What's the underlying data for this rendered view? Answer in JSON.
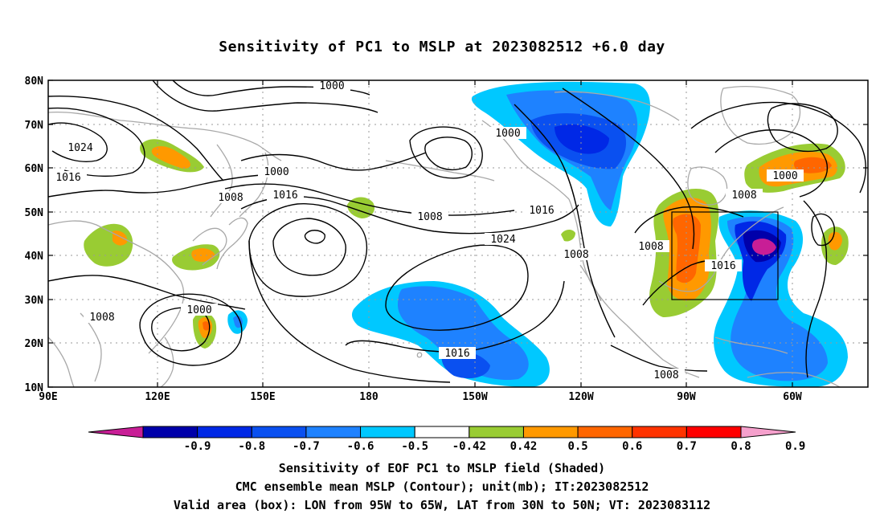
{
  "title": "Sensitivity of PC1 to MSLP at 2023082512 +6.0 day",
  "map": {
    "lat_ticks": [
      "80N",
      "70N",
      "60N",
      "50N",
      "40N",
      "30N",
      "20N",
      "10N"
    ],
    "lon_ticks": [
      "90E",
      "120E",
      "150E",
      "180",
      "150W",
      "120W",
      "90W",
      "60W"
    ],
    "contour_labels": [
      {
        "text": "1000"
      },
      {
        "text": "1000"
      },
      {
        "text": "1024"
      },
      {
        "text": "1016"
      },
      {
        "text": "1000"
      },
      {
        "text": "1008"
      },
      {
        "text": "1016"
      },
      {
        "text": "1008"
      },
      {
        "text": "1016"
      },
      {
        "text": "1024"
      },
      {
        "text": "1008"
      },
      {
        "text": "1008"
      },
      {
        "text": "1016"
      },
      {
        "text": "1000"
      },
      {
        "text": "1008"
      },
      {
        "text": "1000"
      },
      {
        "text": "1008"
      },
      {
        "text": "1016"
      },
      {
        "text": "1008"
      }
    ],
    "valid_box": {
      "lon": [
        "95W",
        "65W"
      ],
      "lat": [
        "30N",
        "50N"
      ]
    }
  },
  "colorbar": {
    "labels": [
      "-0.9",
      "-0.8",
      "-0.7",
      "-0.6",
      "-0.5",
      "-0.42",
      "0.42",
      "0.5",
      "0.6",
      "0.7",
      "0.8",
      "0.9"
    ],
    "colors": [
      "#c81e96",
      "#0000aa",
      "#0028e6",
      "#0a50f0",
      "#1e82ff",
      "#00c8ff",
      "#ffffff",
      "#99cc33",
      "#ff9900",
      "#ff6600",
      "#ff3300",
      "#ff0000",
      "#f5a0cc"
    ]
  },
  "captions": {
    "line1": "Sensitivity of EOF PC1 to MSLP field (Shaded)",
    "line2": "CMC ensemble mean MSLP (Contour); unit(mb); IT:2023082512",
    "line3": "Valid area (box): LON from 95W to 65W, LAT from 30N to 50N; VT: 2023083112"
  }
}
